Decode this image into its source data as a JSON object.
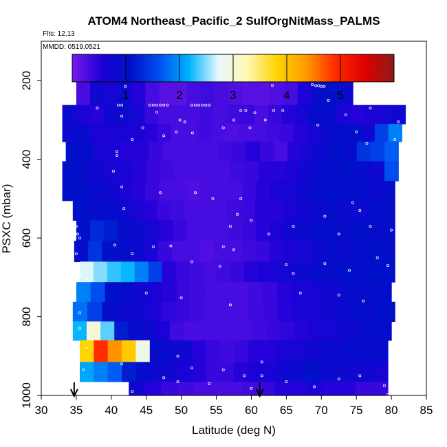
{
  "chart_data": {
    "type": "heatmap",
    "title": "ATOM4 Northeast_Pacific_2 SulfOrgNitMass_PALMS",
    "flights_label": "Flts: 12,13",
    "dates_label": "MMDD: 0519,0521",
    "xlabel": "Latitude (deg N)",
    "ylabel": "PSXC (mbar)",
    "xlim": [
      30,
      85
    ],
    "ylim": [
      1000,
      100
    ],
    "x_ticks": [
      "30",
      "35",
      "40",
      "45",
      "50",
      "55",
      "60",
      "65",
      "70",
      "75",
      "80",
      "85"
    ],
    "y_ticks": [
      "200",
      "400",
      "600",
      "800",
      "1000"
    ],
    "colorbar": {
      "range": [
        0,
        6
      ],
      "ticks": [
        "1",
        "2",
        "3",
        "4",
        "5"
      ],
      "colors": [
        "#7a1bea",
        "#1e00d8",
        "#0010c8",
        "#0050f0",
        "#00b4ff",
        "#e8f8ff",
        "#fff8b0",
        "#ffd400",
        "#ff9a00",
        "#ff2a00",
        "#e00000",
        "#8b1a1a"
      ]
    },
    "arrows_at_latitude": [
      34.7,
      61.2
    ],
    "layers": [
      {
        "p_top": 170,
        "p_bot": 215,
        "lat_start": 35,
        "lat_end": 69,
        "values": [
          0.3,
          0.8,
          0.7,
          0.3,
          0.3,
          0.2,
          0.2,
          0.25,
          0.3,
          0.4,
          0.35,
          0.3,
          0.3,
          0.25,
          0.2,
          0.25,
          0.3
        ]
      },
      {
        "p_top": 200,
        "p_bot": 262,
        "lat_start": 35,
        "lat_end": 74.5,
        "values": [
          0.3,
          0.8,
          0.7,
          0.9,
          0.5,
          0.3,
          0.2,
          0.2,
          0.3,
          0.35,
          0.3,
          0.25,
          0.2,
          0.2,
          0.25,
          0.3,
          0.6,
          1.0,
          1.1,
          0.9
        ]
      },
      {
        "p_top": 262,
        "p_bot": 310,
        "lat_start": 33,
        "lat_end": 82,
        "values": [
          0.9,
          0.6,
          0.5,
          0.8,
          0.9,
          0.7,
          0.4,
          0.3,
          0.3,
          0.3,
          0.35,
          0.3,
          0.35,
          0.4,
          0.3,
          0.4,
          0.5,
          0.7,
          1.0,
          1.0,
          0.6,
          0.5,
          0.6,
          0.7,
          0.8
        ]
      },
      {
        "p_top": 310,
        "p_bot": 355,
        "lat_start": 33,
        "lat_end": 81.5,
        "values": [
          0.9,
          1.0,
          0.6,
          0.6,
          0.7,
          0.6,
          0.5,
          0.4,
          0.3,
          0.3,
          0.35,
          0.3,
          0.25,
          0.3,
          0.3,
          0.35,
          0.4,
          0.5,
          0.7,
          0.9,
          1.0,
          1.1,
          0.8,
          1.5,
          1.9
        ]
      },
      {
        "p_top": 355,
        "p_bot": 405,
        "lat_start": 33.5,
        "lat_end": 81,
        "values": [
          1.1,
          1.0,
          0.7,
          0.6,
          0.5,
          0.5,
          0.4,
          0.3,
          0.3,
          0.3,
          0.3,
          0.35,
          0.4,
          0.5,
          0.4,
          0.3,
          0.5,
          0.7,
          0.9,
          1.1,
          1.0,
          1.4,
          1.5,
          1.7
        ]
      },
      {
        "p_top": 405,
        "p_bot": 455,
        "lat_start": 33,
        "lat_end": 81,
        "values": [
          1.1,
          1.0,
          0.8,
          0.7,
          0.6,
          0.5,
          0.4,
          0.35,
          0.3,
          0.3,
          0.3,
          0.3,
          0.35,
          0.4,
          0.5,
          0.5,
          0.6,
          0.8,
          1.0,
          1.0,
          1.1,
          1.0,
          0.8,
          1.6
        ]
      },
      {
        "p_top": 455,
        "p_bot": 505,
        "lat_start": 33,
        "lat_end": 80.5,
        "values": [
          1.1,
          1.1,
          0.9,
          0.8,
          0.6,
          0.5,
          0.4,
          0.3,
          0.3,
          0.25,
          0.3,
          0.3,
          0.3,
          0.4,
          0.5,
          0.6,
          0.7,
          0.9,
          1.0,
          1.1,
          1.0,
          1.0,
          0.9,
          1.0
        ]
      },
      {
        "p_top": 505,
        "p_bot": 555,
        "lat_start": 34.5,
        "lat_end": 80.5,
        "values": [
          1.1,
          1.0,
          1.0,
          0.9,
          0.7,
          0.5,
          0.4,
          0.35,
          0.3,
          0.3,
          0.3,
          0.35,
          0.4,
          0.5,
          0.5,
          0.6,
          0.8,
          0.9,
          1.0,
          0.9,
          0.9,
          1.0,
          1.0
        ]
      },
      {
        "p_top": 555,
        "p_bot": 607,
        "lat_start": 35,
        "lat_end": 80.5,
        "values": [
          1.1,
          1.3,
          1.2,
          1.0,
          0.9,
          0.7,
          0.5,
          0.4,
          0.3,
          0.3,
          0.3,
          0.35,
          0.4,
          0.5,
          0.6,
          0.8,
          0.9,
          1.0,
          1.0,
          1.0,
          1.1,
          1.0,
          1.0
        ]
      },
      {
        "p_top": 607,
        "p_bot": 660,
        "lat_start": 34.7,
        "lat_end": 80.5,
        "values": [
          1.0,
          1.4,
          1.1,
          1.0,
          0.9,
          0.7,
          0.4,
          0.3,
          0.3,
          0.25,
          0.3,
          0.3,
          0.35,
          0.4,
          0.5,
          0.6,
          0.7,
          0.8,
          1.0,
          0.9,
          1.0,
          1.1,
          1.0
        ]
      },
      {
        "p_top": 660,
        "p_bot": 712,
        "lat_start": 35.5,
        "lat_end": 80.5,
        "values": [
          2.7,
          2.5,
          2.3,
          2.2,
          1.9,
          1.5,
          0.5,
          0.4,
          0.35,
          0.3,
          0.35,
          0.4,
          0.5,
          0.6,
          0.7,
          0.8,
          0.9,
          1.0,
          1.0,
          1.1,
          1.0,
          1.1,
          1.1
        ]
      },
      {
        "p_top": 712,
        "p_bot": 762,
        "lat_start": 35,
        "lat_end": 80,
        "values": [
          1.9,
          1.6,
          1.1,
          1.0,
          0.8,
          0.6,
          0.5,
          0.4,
          0.35,
          0.3,
          0.3,
          0.3,
          0.35,
          0.4,
          0.5,
          0.6,
          0.7,
          0.8,
          0.9,
          1.0,
          1.0,
          1.0
        ]
      },
      {
        "p_top": 762,
        "p_bot": 812,
        "lat_start": 34.5,
        "lat_end": 80.5,
        "values": [
          1.8,
          1.5,
          1.0,
          0.9,
          0.8,
          0.6,
          0.45,
          0.4,
          0.35,
          0.3,
          0.3,
          0.3,
          0.35,
          0.4,
          0.5,
          0.6,
          0.7,
          0.8,
          0.9,
          1.0,
          1.0,
          1.1
        ]
      },
      {
        "p_top": 812,
        "p_bot": 860,
        "lat_start": 34.5,
        "lat_end": 80,
        "values": [
          2.2,
          3.0,
          2.4,
          1.2,
          1.0,
          0.9,
          0.6,
          0.35,
          0.3,
          0.3,
          0.3,
          0.3,
          0.3,
          0.35,
          0.4,
          0.45,
          0.5,
          0.6,
          0.7,
          0.8,
          0.9,
          1.0,
          1.0
        ]
      },
      {
        "p_top": 860,
        "p_bot": 915,
        "lat_start": 35.5,
        "lat_end": 79.5,
        "values": [
          3.8,
          4.9,
          4.4,
          3.9,
          2.9,
          1.0,
          0.9,
          0.8,
          0.5,
          0.4,
          0.35,
          0.4,
          0.5,
          0.5,
          0.6,
          0.7,
          0.8,
          0.9,
          0.9,
          1.0,
          0.9,
          1.0
        ]
      },
      {
        "p_top": 915,
        "p_bot": 965,
        "lat_start": 35.5,
        "lat_end": 79.5,
        "values": [
          2.1,
          1.9,
          1.7,
          1.2,
          1.0,
          0.9,
          0.8,
          0.6,
          0.5,
          0.4,
          0.4,
          0.5,
          0.6,
          0.7,
          0.8,
          0.9,
          1.1,
          0.9,
          0.9,
          0.8,
          0.8,
          0.7
        ]
      },
      {
        "p_top": 965,
        "p_bot": 1000,
        "lat_start": 42.5,
        "lat_end": 79.5,
        "values": [
          0.8,
          0.5,
          0.4,
          0.35,
          0.3,
          0.3,
          0.3,
          0.35,
          0.4,
          0.5,
          0.5,
          0.6,
          0.5,
          0.5,
          0.4,
          0.4
        ]
      }
    ],
    "sample_points": [
      [
        38.8,
        192
      ],
      [
        39.8,
        194
      ],
      [
        40.5,
        196
      ],
      [
        42.0,
        215
      ],
      [
        45.5,
        262
      ],
      [
        46.0,
        262
      ],
      [
        46.5,
        262
      ],
      [
        47.0,
        262
      ],
      [
        47.5,
        262
      ],
      [
        48.0,
        262
      ],
      [
        51.5,
        262
      ],
      [
        52.0,
        262
      ],
      [
        52.5,
        262
      ],
      [
        53.0,
        262
      ],
      [
        53.5,
        262
      ],
      [
        54.0,
        262
      ],
      [
        38.0,
        270
      ],
      [
        41.0,
        262
      ],
      [
        41.5,
        262
      ],
      [
        62.8,
        190
      ],
      [
        63.2,
        190
      ],
      [
        63.6,
        190
      ],
      [
        64.0,
        190
      ],
      [
        64.4,
        190
      ],
      [
        64.8,
        190
      ],
      [
        65.2,
        190
      ],
      [
        65.6,
        190
      ],
      [
        66.0,
        190
      ],
      [
        66.4,
        190
      ],
      [
        66.8,
        190
      ],
      [
        67.2,
        190
      ],
      [
        67.6,
        190
      ],
      [
        68.0,
        192
      ],
      [
        68.4,
        200
      ],
      [
        68.7,
        210
      ],
      [
        69.2,
        213
      ],
      [
        69.6,
        213
      ],
      [
        70.0,
        215
      ],
      [
        70.4,
        215
      ],
      [
        63.0,
        212
      ],
      [
        41.5,
        290
      ],
      [
        43.0,
        350
      ],
      [
        44.5,
        320
      ],
      [
        46.5,
        280
      ],
      [
        47.5,
        340
      ],
      [
        49.3,
        330
      ],
      [
        49.8,
        300
      ],
      [
        50.5,
        305
      ],
      [
        51.6,
        333
      ],
      [
        56.0,
        320
      ],
      [
        57.5,
        300
      ],
      [
        58.5,
        276
      ],
      [
        59.2,
        276
      ],
      [
        59.8,
        320
      ],
      [
        60.5,
        282
      ],
      [
        62.0,
        300
      ],
      [
        63.2,
        276
      ],
      [
        64.5,
        276
      ],
      [
        69.5,
        313
      ],
      [
        71.0,
        250
      ],
      [
        73.5,
        287
      ],
      [
        75.0,
        330
      ],
      [
        76.5,
        360
      ],
      [
        77.0,
        270
      ],
      [
        80.5,
        350
      ],
      [
        81.0,
        305
      ],
      [
        40.8,
        380
      ],
      [
        40.8,
        390
      ],
      [
        40.3,
        430
      ],
      [
        41.5,
        470
      ],
      [
        41.8,
        525
      ],
      [
        47.0,
        485
      ],
      [
        52.0,
        485
      ],
      [
        54.5,
        500
      ],
      [
        58.5,
        500
      ],
      [
        58.0,
        540
      ],
      [
        60.0,
        555
      ],
      [
        57.0,
        570
      ],
      [
        62.5,
        590
      ],
      [
        66.0,
        570
      ],
      [
        70.5,
        545
      ],
      [
        72.5,
        590
      ],
      [
        74.5,
        510
      ],
      [
        75.5,
        530
      ],
      [
        77.0,
        570
      ],
      [
        80.0,
        580
      ],
      [
        35.0,
        570
      ],
      [
        35.2,
        590
      ],
      [
        35.5,
        600
      ],
      [
        35.0,
        640
      ],
      [
        34.8,
        665
      ],
      [
        35.2,
        700
      ],
      [
        35.8,
        695
      ],
      [
        36.5,
        702
      ],
      [
        40.5,
        618
      ],
      [
        43.0,
        640
      ],
      [
        46.0,
        622
      ],
      [
        48.5,
        620
      ],
      [
        51.5,
        660
      ],
      [
        55.5,
        672
      ],
      [
        56.0,
        622
      ],
      [
        57.5,
        630
      ],
      [
        65.0,
        668
      ],
      [
        66.0,
        690
      ],
      [
        70.5,
        665
      ],
      [
        74.0,
        682
      ],
      [
        78.0,
        650
      ],
      [
        79.5,
        670
      ],
      [
        45.0,
        740
      ],
      [
        50.0,
        752
      ],
      [
        57.0,
        770
      ],
      [
        67.0,
        740
      ],
      [
        72.5,
        745
      ],
      [
        76.0,
        760
      ],
      [
        35.5,
        790
      ],
      [
        35.5,
        830
      ],
      [
        35.0,
        870
      ],
      [
        35.0,
        898
      ],
      [
        36.5,
        880
      ],
      [
        36.0,
        935
      ],
      [
        41.5,
        920
      ],
      [
        49.5,
        900
      ],
      [
        51.5,
        930
      ],
      [
        56.0,
        935
      ],
      [
        59.0,
        950
      ],
      [
        61.5,
        915
      ],
      [
        61.5,
        950
      ],
      [
        65.0,
        965
      ],
      [
        72.5,
        958
      ],
      [
        75.5,
        950
      ],
      [
        79.0,
        975
      ],
      [
        38.5,
        975
      ],
      [
        41.5,
        980
      ],
      [
        43.0,
        990
      ],
      [
        47.5,
        955
      ],
      [
        49.5,
        965
      ],
      [
        54.0,
        970
      ],
      [
        60.0,
        982
      ],
      [
        69.0,
        978
      ],
      [
        79.5,
        998
      ],
      [
        80.0,
        998
      ]
    ]
  }
}
